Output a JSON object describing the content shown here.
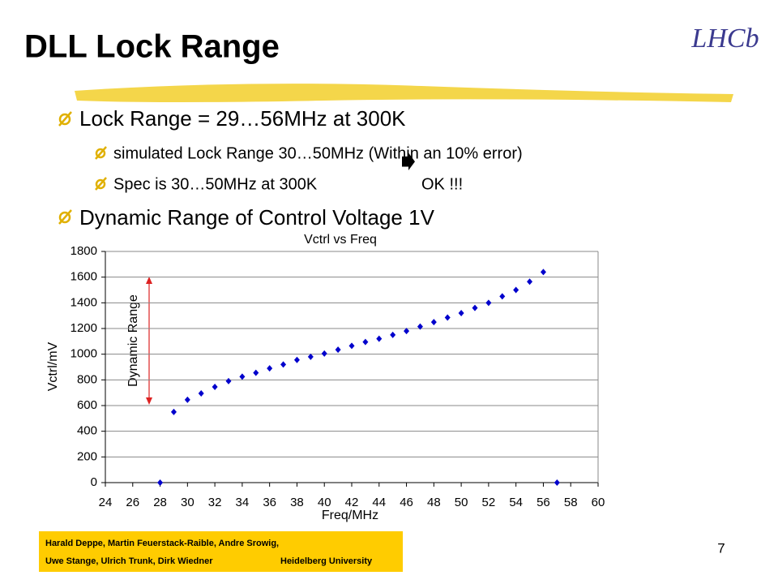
{
  "slide": {
    "title": "DLL Lock Range",
    "logo": "LHCb",
    "bullets": [
      "Lock Range = 29…56MHz at 300K",
      "Dynamic Range of Control Voltage 1V"
    ],
    "sub_bullets": [
      "simulated Lock Range 30…50MHz (Within an 10% error)",
      "Spec is 30…50MHz at 300K",
      "OK !!!"
    ],
    "footer": [
      "Harald Deppe, Martin Feuerstack-Raible, Andre Srowig,",
      "Uwe Stange, Ulrich Trunk, Dirk Wiedner",
      "Heidelberg University"
    ],
    "page_number": "7"
  },
  "chart_data": {
    "type": "scatter",
    "title": "Vctrl vs Freq",
    "x_label": "Freq/MHz",
    "y_label": "Vctrl/mV",
    "annotation": "Dynamic Range",
    "x": [
      28,
      29,
      30,
      31,
      32,
      33,
      34,
      35,
      36,
      37,
      38,
      39,
      40,
      41,
      42,
      43,
      44,
      45,
      46,
      47,
      48,
      49,
      50,
      51,
      52,
      53,
      54,
      55,
      56,
      57
    ],
    "values": [
      0,
      550,
      645,
      695,
      745,
      790,
      825,
      855,
      890,
      920,
      955,
      980,
      1005,
      1035,
      1065,
      1095,
      1120,
      1150,
      1180,
      1215,
      1250,
      1285,
      1320,
      1360,
      1400,
      1450,
      1500,
      1565,
      1640,
      0
    ],
    "color": "#0000cc",
    "xlim": [
      24,
      60
    ],
    "xticks": [
      24,
      26,
      28,
      30,
      32,
      34,
      36,
      38,
      40,
      42,
      44,
      46,
      48,
      50,
      52,
      54,
      56,
      58,
      60
    ],
    "ylim": [
      0,
      1800
    ],
    "yticks": [
      0,
      200,
      400,
      600,
      800,
      {
        "value": 1000,
        "label": "1000"
      },
      1200,
      1400,
      1600,
      1800
    ],
    "grid": true
  }
}
